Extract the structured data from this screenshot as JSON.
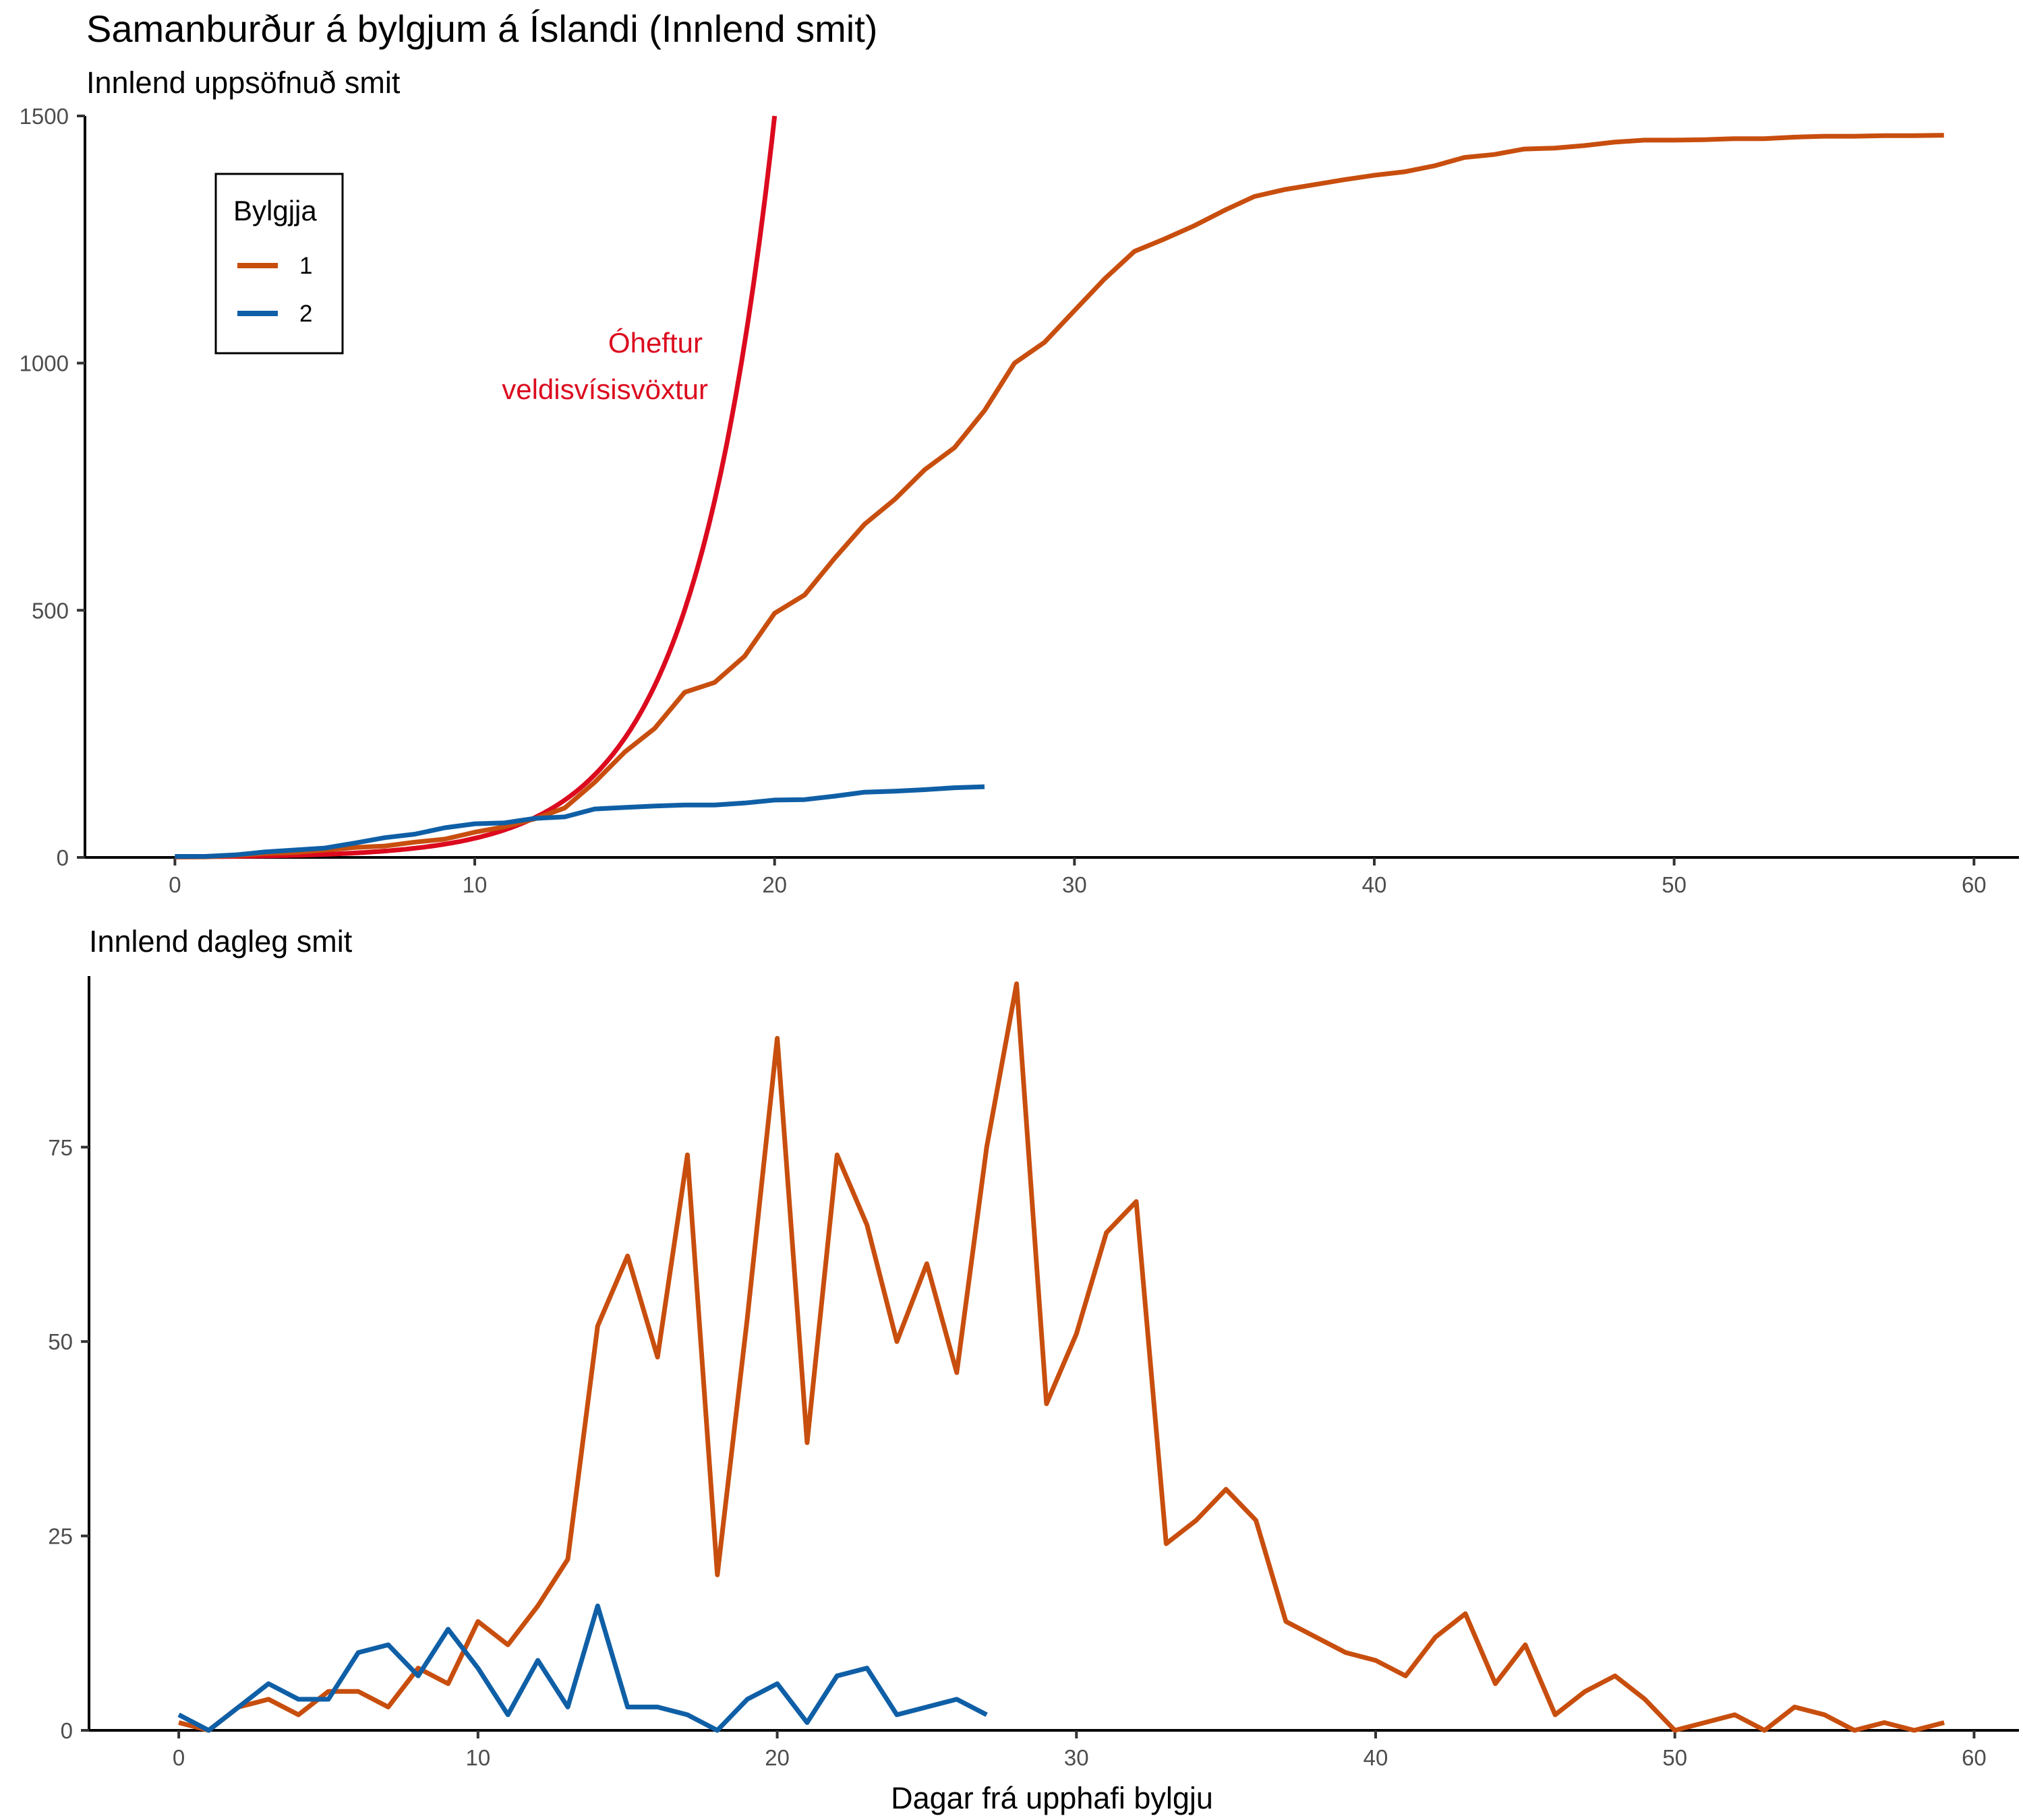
{
  "title": "Samanburður á bylgjum á Íslandi (Innlend smit)",
  "colors": {
    "wave1": "#c84e0e",
    "wave2": "#0f5fa6",
    "exponential": "#dc0a1e"
  },
  "legend": {
    "title": "Bylgjja",
    "entries": [
      {
        "label": "1",
        "color": "#c84e0e"
      },
      {
        "label": "2",
        "color": "#0f5fa6"
      }
    ]
  },
  "chart_data": [
    {
      "type": "line",
      "title": "Innlend uppsöfnuð smit",
      "xlabel": "",
      "ylabel": "",
      "xlim": [
        -3,
        61.5
      ],
      "ylim": [
        0,
        1500
      ],
      "xticks": [
        "0",
        "10",
        "20",
        "30",
        "40",
        "50",
        "60"
      ],
      "yticks": [
        "0",
        "500",
        "1000",
        "1500"
      ],
      "legend_position": "top-left",
      "grid": false,
      "series": [
        {
          "name": "1",
          "x": [
            0,
            1,
            2,
            3,
            4,
            5,
            6,
            7,
            8,
            9,
            10,
            11,
            12,
            13,
            14,
            15,
            16,
            17,
            18,
            19,
            20,
            21,
            22,
            23,
            24,
            25,
            26,
            27,
            28,
            29,
            30,
            31,
            32,
            33,
            34,
            35,
            36,
            37,
            38,
            39,
            40,
            41,
            42,
            43,
            44,
            45,
            46,
            47,
            48,
            49,
            50,
            51,
            52,
            53,
            54,
            55,
            56,
            57,
            58,
            59
          ],
          "values": [
            1,
            1,
            4,
            8,
            10,
            15,
            20,
            23,
            31,
            37,
            51,
            62,
            78,
            100,
            152,
            213,
            261,
            334,
            354,
            407,
            494,
            531,
            605,
            674,
            724,
            784,
            829,
            904,
            1000,
            1042,
            1106,
            1170,
            1226,
            1251,
            1278,
            1309,
            1337,
            1351,
            1361,
            1371,
            1380,
            1387,
            1399,
            1416,
            1422,
            1433,
            1435,
            1440,
            1447,
            1451,
            1451,
            1452,
            1454,
            1454,
            1457,
            1459,
            1459,
            1460,
            1460,
            1461
          ]
        },
        {
          "name": "2",
          "x": [
            0,
            1,
            2,
            3,
            4,
            5,
            6,
            7,
            8,
            9,
            10,
            11,
            12,
            13,
            14,
            15,
            16,
            17,
            18,
            19,
            20,
            21,
            22,
            23,
            24,
            25,
            26,
            27
          ],
          "values": [
            2,
            2,
            5,
            11,
            15,
            19,
            29,
            40,
            47,
            60,
            68,
            70,
            79,
            82,
            98,
            101,
            104,
            106,
            106,
            110,
            116,
            117,
            124,
            132,
            134,
            137,
            141,
            143
          ]
        }
      ],
      "annotation": {
        "lines": [
          "Óheftur",
          "veldisvísisvöxtur"
        ],
        "x": 15.3,
        "y": 1000
      },
      "exponential_curve": {
        "x_start": 0,
        "x_end": 20,
        "y_at_end": 1500,
        "daily_growth": 0.3657
      }
    },
    {
      "type": "line",
      "title": "Innlend dagleg smit",
      "xlabel": "Dagar frá upphafi bylgju",
      "ylabel": "",
      "xlim": [
        -3,
        61.5
      ],
      "ylim": [
        0,
        97
      ],
      "xticks": [
        "0",
        "10",
        "20",
        "30",
        "40",
        "50",
        "60"
      ],
      "yticks": [
        "0",
        "25",
        "50",
        "75"
      ],
      "grid": false,
      "series": [
        {
          "name": "1",
          "x": [
            0,
            1,
            2,
            3,
            4,
            5,
            6,
            7,
            8,
            9,
            10,
            11,
            12,
            13,
            14,
            15,
            16,
            17,
            18,
            19,
            20,
            21,
            22,
            23,
            24,
            25,
            26,
            27,
            28,
            29,
            30,
            31,
            32,
            33,
            34,
            35,
            36,
            37,
            38,
            39,
            40,
            41,
            42,
            43,
            44,
            45,
            46,
            47,
            48,
            49,
            50,
            51,
            52,
            53,
            54,
            55,
            56,
            57,
            58,
            59
          ],
          "values": [
            1,
            0,
            3,
            4,
            2,
            5,
            5,
            3,
            8,
            6,
            14,
            11,
            16,
            22,
            52,
            61,
            48,
            74,
            20,
            53,
            89,
            37,
            74,
            65,
            50,
            60,
            46,
            75,
            96,
            42,
            51,
            64,
            68,
            24,
            27,
            31,
            27,
            14,
            12,
            10,
            9,
            7,
            12,
            15,
            6,
            11,
            2,
            5,
            7,
            4,
            0,
            1,
            2,
            0,
            3,
            2,
            0,
            1,
            0,
            1
          ]
        },
        {
          "name": "2",
          "x": [
            0,
            1,
            2,
            3,
            4,
            5,
            6,
            7,
            8,
            9,
            10,
            11,
            12,
            13,
            14,
            15,
            16,
            17,
            18,
            19,
            20,
            21,
            22,
            23,
            24,
            25,
            26,
            27
          ],
          "values": [
            2,
            0,
            3,
            6,
            4,
            4,
            10,
            11,
            7,
            13,
            8,
            2,
            9,
            3,
            16,
            3,
            3,
            2,
            0,
            4,
            6,
            1,
            7,
            8,
            2,
            3,
            4,
            2
          ]
        }
      ]
    }
  ]
}
